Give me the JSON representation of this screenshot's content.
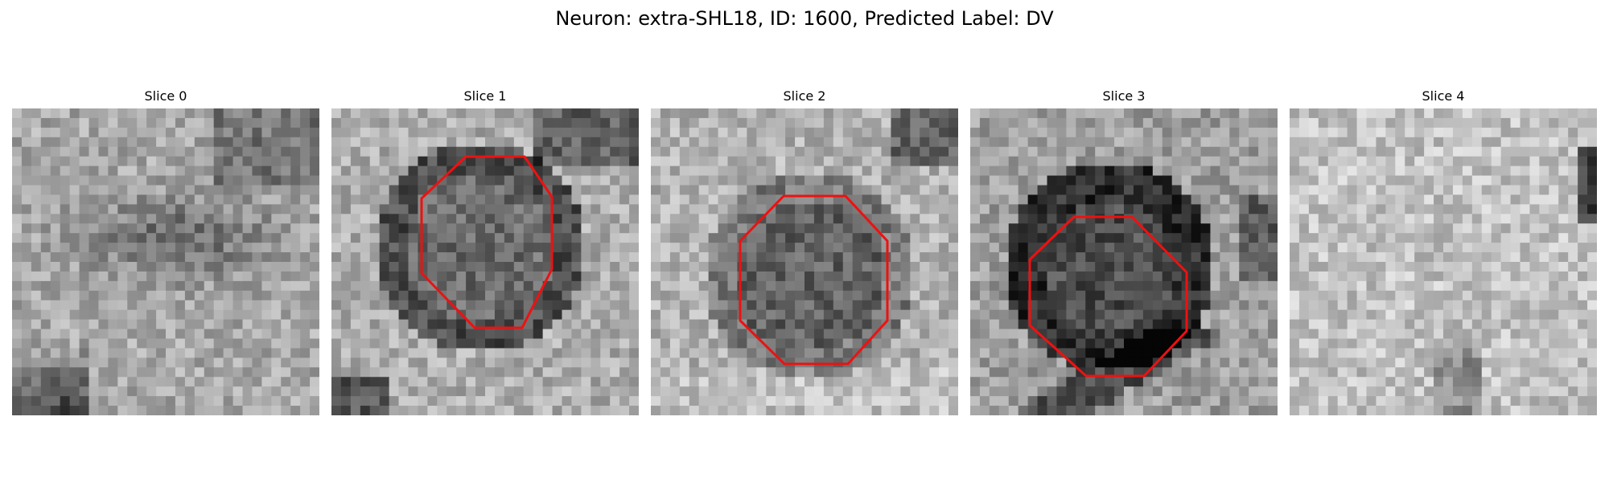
{
  "figure": {
    "title": "Neuron: extra-SHL18, ID: 1600, Predicted Label: DV"
  },
  "slices": [
    {
      "label": "Slice 0",
      "has_contour": false
    },
    {
      "label": "Slice 1",
      "has_contour": true
    },
    {
      "label": "Slice 2",
      "has_contour": true
    },
    {
      "label": "Slice 3",
      "has_contour": true
    },
    {
      "label": "Slice 4",
      "has_contour": false
    }
  ],
  "colors": {
    "contour": "#ee1111"
  }
}
